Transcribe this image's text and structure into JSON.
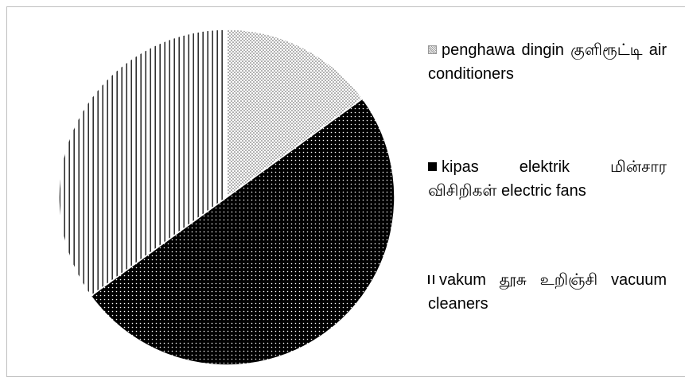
{
  "chart_data": {
    "type": "pie",
    "categories": [
      "penghawa dingin குளிரூட்டி air conditioners",
      "kipas elektrik மின்சார விசிறிகள் electric fans",
      "vakum தூசு உறிஞ்சி vacuum cleaners"
    ],
    "values": [
      15,
      50,
      35
    ]
  }
}
